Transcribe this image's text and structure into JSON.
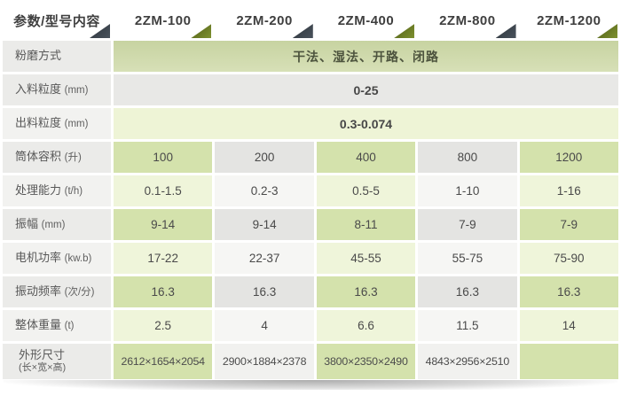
{
  "header": {
    "param_label": "参数/型号内容",
    "models": [
      "2ZM-100",
      "2ZM-200",
      "2ZM-400",
      "2ZM-800",
      "2ZM-1200"
    ]
  },
  "rows": [
    {
      "label": "粉磨方式",
      "unit": "",
      "value": "干法、湿法、开路、闭路"
    },
    {
      "label": "入料粒度",
      "unit": "(mm)",
      "value": "0-25"
    },
    {
      "label": "出料粒度",
      "unit": "(mm)",
      "value": "0.3-0.074"
    },
    {
      "label": "筒体容积",
      "unit": "(升)",
      "values": [
        "100",
        "200",
        "400",
        "800",
        "1200"
      ]
    },
    {
      "label": "处理能力",
      "unit": "(t/h)",
      "values": [
        "0.1-1.5",
        "0.2-3",
        "0.5-5",
        "1-10",
        "1-16"
      ]
    },
    {
      "label": "振幅",
      "unit": "(mm)",
      "values": [
        "9-14",
        "9-14",
        "8-11",
        "7-9",
        "7-9"
      ]
    },
    {
      "label": "电机功率",
      "unit": "(kw.b)",
      "values": [
        "17-22",
        "22-37",
        "45-55",
        "55-75",
        "75-90"
      ]
    },
    {
      "label": "振动频率",
      "unit": "(次/分)",
      "values": [
        "16.3",
        "16.3",
        "16.3",
        "16.3",
        "16.3"
      ]
    },
    {
      "label": "整体重量",
      "unit": "(t)",
      "values": [
        "2.5",
        "4",
        "6.6",
        "11.5",
        "14"
      ]
    },
    {
      "label": "外形尺寸",
      "unit": "(长×宽×高)",
      "values": [
        "2612×1654×2054",
        "2900×1884×2378",
        "3800×2350×2490",
        "4843×2956×2510",
        ""
      ]
    }
  ],
  "colors": {
    "green_cell_dark": "#d4e2ac",
    "green_cell_light": "#eff5da",
    "gray_cell_dark": "#e4e4e2",
    "gray_cell_light": "#f6f6f4",
    "span_green": "#cdd8ab",
    "span_gray": "#e8e8e6",
    "span_light_green": "#eef4d6",
    "triangle_dark": "#39424a",
    "triangle_green": "#66761f",
    "header_text": "#3f3f3f",
    "label_text": "#585858",
    "value_text": "#4a4a4a"
  }
}
